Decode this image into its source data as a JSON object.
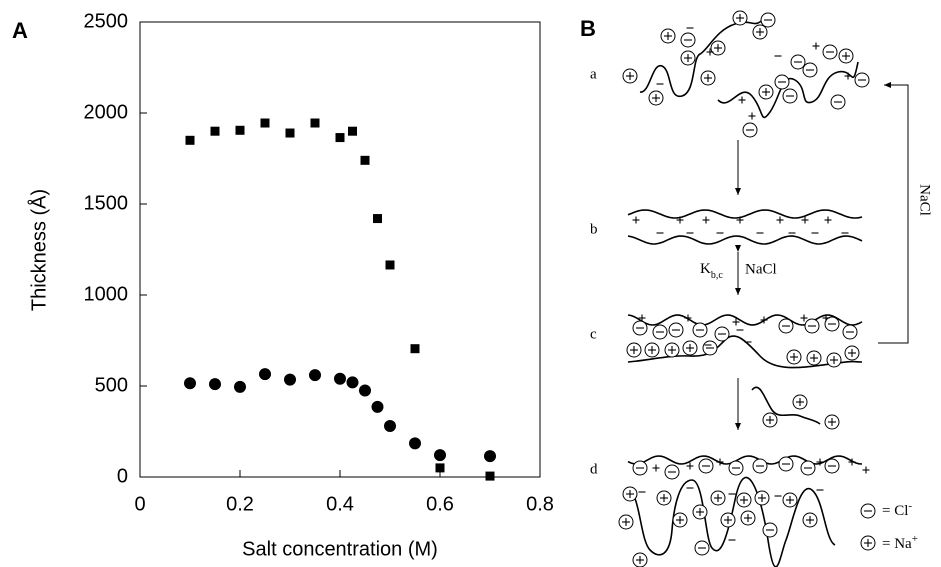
{
  "panel_labels": [
    "A",
    "B"
  ],
  "chart_data": {
    "type": "scatter",
    "xlabel": "Salt concentration (M)",
    "ylabel": "Thickness (Å)",
    "x": [
      0.1,
      0.15,
      0.2,
      0.25,
      0.3,
      0.35,
      0.4,
      0.425,
      0.45,
      0.475,
      0.5,
      0.55,
      0.6,
      0.7
    ],
    "series": [
      {
        "marker": "square",
        "color": "#000000",
        "values": [
          1850,
          1900,
          1905,
          1945,
          1890,
          1945,
          1865,
          1900,
          1740,
          1420,
          1165,
          705,
          50,
          5
        ]
      },
      {
        "marker": "circle",
        "color": "#000000",
        "values": [
          515,
          510,
          495,
          565,
          535,
          560,
          540,
          520,
          475,
          385,
          280,
          185,
          120,
          115
        ]
      }
    ],
    "xlim": [
      0,
      0.8
    ],
    "xticks": [
      0,
      0.2,
      0.4,
      0.6,
      0.8
    ],
    "ylim": [
      0,
      2500
    ],
    "yticks": [
      0,
      500,
      1000,
      1500,
      2000,
      2500
    ]
  },
  "diagram": {
    "stages": [
      "a",
      "b",
      "c",
      "d"
    ],
    "feedback_label": "NaCl",
    "equilibrium": {
      "k": "K",
      "sub": "b,c",
      "label": "NaCl"
    },
    "legend": [
      {
        "label": "= Cl",
        "sup": "-"
      },
      {
        "label": "= Na",
        "sup": "+"
      }
    ]
  }
}
